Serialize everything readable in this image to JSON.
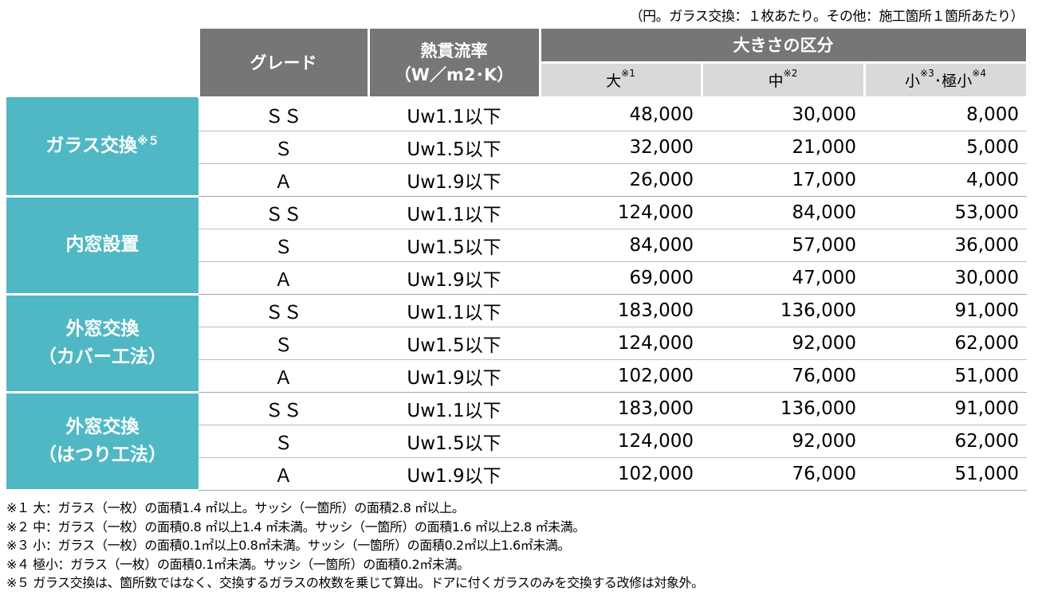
{
  "unit_note": "（円。ガラス交換：１枚あたり。その他：施工箇所１箇所あたり）",
  "header": {
    "grade": "グレード",
    "u_value_line1": "熱貫流率",
    "u_value_line2": "（W／m2･K）",
    "size_group": "大きさの区分",
    "large": "大",
    "large_note": "※1",
    "medium": "中",
    "medium_note": "※2",
    "small": "小",
    "small_note": "※3",
    "small_sep": "･",
    "tiny": "極小",
    "tiny_note": "※4"
  },
  "groups": [
    {
      "line1": "ガラス交換",
      "note": "※５",
      "line2": "",
      "rows": [
        {
          "grade": "ＳＳ",
          "u": "Uw1.1以下",
          "large": "48,000",
          "medium": "30,000",
          "small": "8,000"
        },
        {
          "grade": "Ｓ",
          "u": "Uw1.5以下",
          "large": "32,000",
          "medium": "21,000",
          "small": "5,000"
        },
        {
          "grade": "Ａ",
          "u": "Uw1.9以下",
          "large": "26,000",
          "medium": "17,000",
          "small": "4,000"
        }
      ]
    },
    {
      "line1": "内窓設置",
      "note": "",
      "line2": "",
      "rows": [
        {
          "grade": "ＳＳ",
          "u": "Uw1.1以下",
          "large": "124,000",
          "medium": "84,000",
          "small": "53,000"
        },
        {
          "grade": "Ｓ",
          "u": "Uw1.5以下",
          "large": "84,000",
          "medium": "57,000",
          "small": "36,000"
        },
        {
          "grade": "Ａ",
          "u": "Uw1.9以下",
          "large": "69,000",
          "medium": "47,000",
          "small": "30,000"
        }
      ]
    },
    {
      "line1": "外窓交換",
      "note": "",
      "line2": "（カバー工法）",
      "rows": [
        {
          "grade": "ＳＳ",
          "u": "Uw1.1以下",
          "large": "183,000",
          "medium": "136,000",
          "small": "91,000"
        },
        {
          "grade": "Ｓ",
          "u": "Uw1.5以下",
          "large": "124,000",
          "medium": "92,000",
          "small": "62,000"
        },
        {
          "grade": "Ａ",
          "u": "Uw1.9以下",
          "large": "102,000",
          "medium": "76,000",
          "small": "51,000"
        }
      ]
    },
    {
      "line1": "外窓交換",
      "note": "",
      "line2": "（はつり工法）",
      "rows": [
        {
          "grade": "ＳＳ",
          "u": "Uw1.1以下",
          "large": "183,000",
          "medium": "136,000",
          "small": "91,000"
        },
        {
          "grade": "Ｓ",
          "u": "Uw1.5以下",
          "large": "124,000",
          "medium": "92,000",
          "small": "62,000"
        },
        {
          "grade": "Ａ",
          "u": "Uw1.9以下",
          "large": "102,000",
          "medium": "76,000",
          "small": "51,000"
        }
      ]
    }
  ],
  "notes": [
    "※１ 大：ガラス（一枚）の面積1.4 ㎡以上。サッシ（一箇所）の面積2.8 ㎡以上。",
    "※２ 中：ガラス（一枚）の面積0.8 ㎡以上1.4 ㎡未満。サッシ（一箇所）の面積1.6 ㎡以上2.8 ㎡未満。",
    "※３ 小：ガラス（一枚）の面積0.1㎡以上0.8㎡未満。サッシ（一箇所）の面積0.2㎡以上1.6㎡未満。",
    "※４ 極小：ガラス（一枚）の面積0.1㎡未満。サッシ（一箇所）の面積0.2㎡未満。",
    "※５ ガラス交換は、箇所数ではなく、交換するガラスの枚数を乗じて算出。ドアに付くガラスのみを交換する改修は対象外。"
  ],
  "colors": {
    "header_bg": "#767676",
    "subheader_bg": "#d9d9d9",
    "category_bg": "#4fb8c4"
  }
}
